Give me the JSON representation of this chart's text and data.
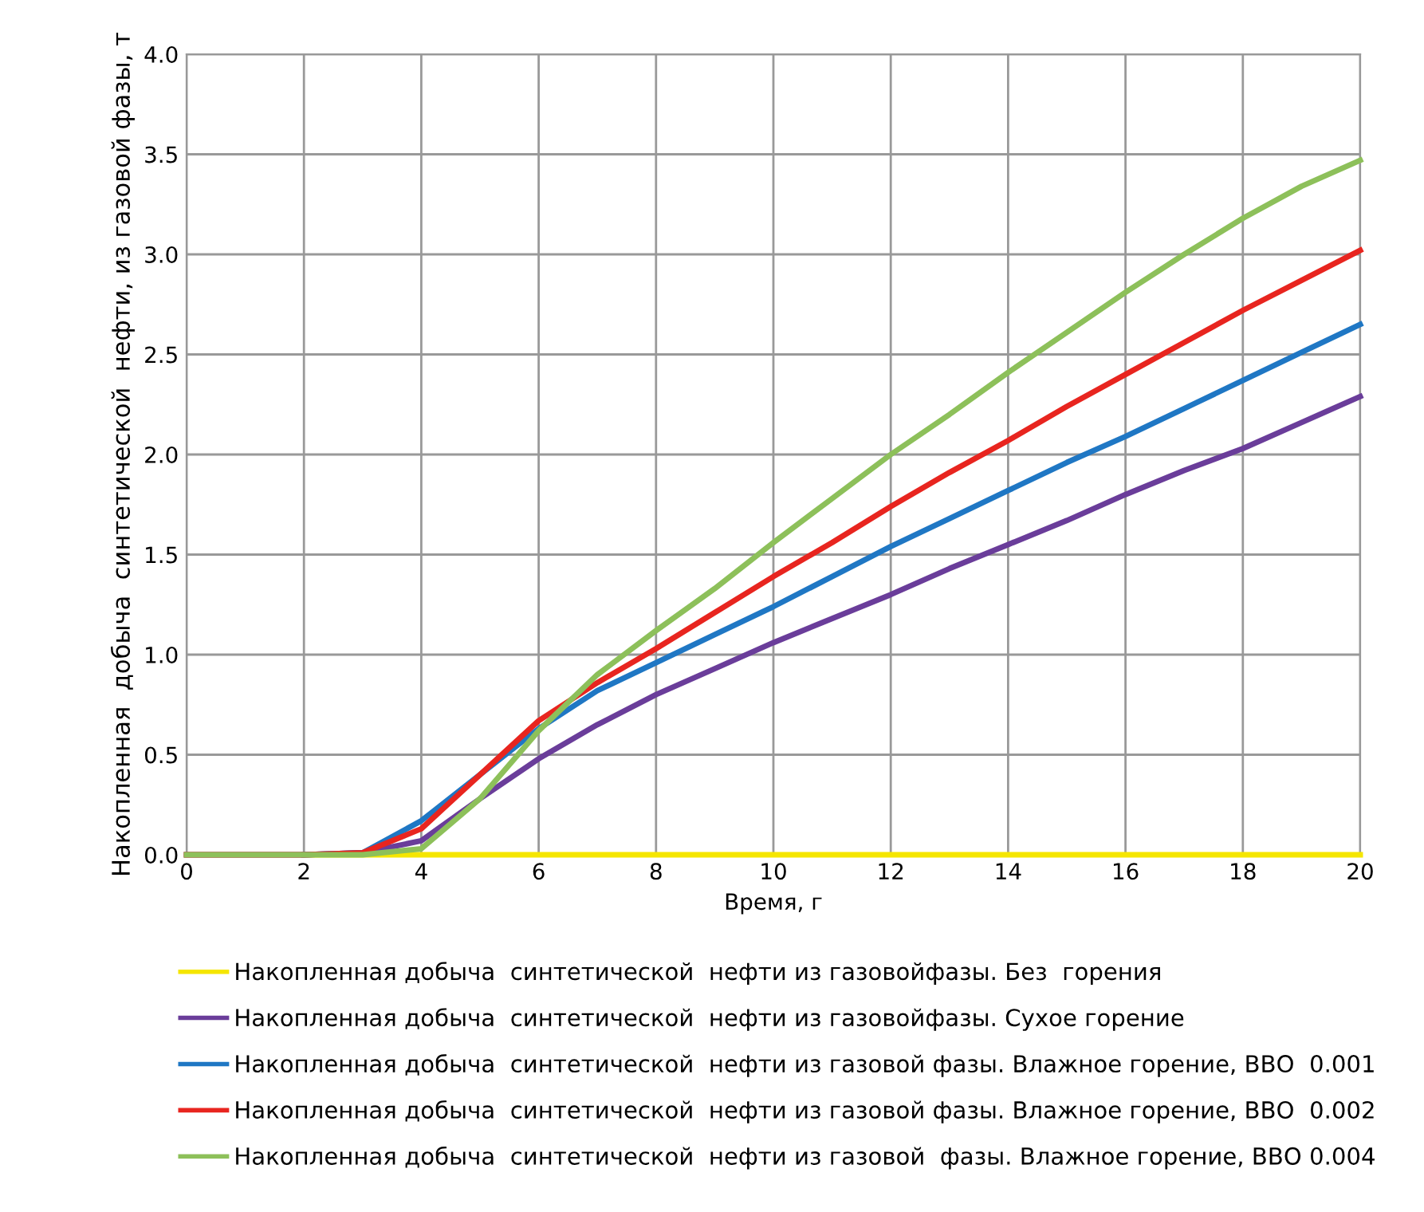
{
  "chart_data": {
    "type": "line",
    "xlabel": "Время, г",
    "ylabel": "Накопленная  добыча  синтетической  нефти, из газовой фазы, т",
    "x": [
      0,
      1,
      2,
      3,
      4,
      5,
      6,
      7,
      8,
      9,
      10,
      11,
      12,
      13,
      14,
      15,
      16,
      17,
      18,
      19,
      20
    ],
    "xlim": [
      0,
      20
    ],
    "xticks": [
      0,
      2,
      4,
      6,
      8,
      10,
      12,
      14,
      16,
      18,
      20
    ],
    "ylim": [
      0,
      4
    ],
    "yticks": [
      {
        "value": 0,
        "label": "0.0"
      },
      {
        "value": 0.5,
        "label": "0.5"
      },
      {
        "value": 1,
        "label": "1.0"
      },
      {
        "value": 1.5,
        "label": "1.5"
      },
      {
        "value": 2,
        "label": "2.0"
      },
      {
        "value": 2.5,
        "label": "2.5"
      },
      {
        "value": 3,
        "label": "3.0"
      },
      {
        "value": 3.5,
        "label": "3.5"
      },
      {
        "value": 4,
        "label": "4.0"
      }
    ],
    "grid": true,
    "legend": "bottom",
    "marker": "none",
    "line_style": "solid",
    "series": [
      {
        "name": "Накопленная добыча  синтетической  нефти из газовойфазы. Без  горения",
        "color": "#f5e600",
        "values": [
          null,
          null,
          0,
          0,
          0,
          0,
          0,
          0,
          0,
          0,
          0,
          0,
          0,
          0,
          0,
          0,
          0,
          0,
          0,
          0,
          0
        ]
      },
      {
        "name": "Накопленная добыча  синтетической  нефти из газовойфазы. Сухое горение",
        "color": "#6a3d9a",
        "values": [
          0,
          0,
          0,
          0.01,
          0.07,
          0.28,
          0.48,
          0.65,
          0.8,
          0.93,
          1.06,
          1.18,
          1.3,
          1.43,
          1.55,
          1.67,
          1.8,
          1.92,
          2.03,
          2.16,
          2.29
        ]
      },
      {
        "name": "Накопленная добыча  синтетической  нефти из газовой фазы. Влажное горение, ВВО  0.001",
        "color": "#1f77c4",
        "values": [
          null,
          null,
          0,
          0.01,
          0.17,
          0.4,
          0.63,
          0.82,
          0.96,
          1.1,
          1.24,
          1.39,
          1.54,
          1.68,
          1.82,
          1.96,
          2.09,
          2.23,
          2.37,
          2.51,
          2.65
        ]
      },
      {
        "name": "Накопленная добыча  синтетической  нефти из газовой фазы. Влажное горение, ВВО  0.002",
        "color": "#e8251f",
        "values": [
          0,
          0,
          0,
          0.01,
          0.13,
          0.4,
          0.67,
          0.86,
          1.03,
          1.21,
          1.39,
          1.56,
          1.74,
          1.91,
          2.07,
          2.24,
          2.4,
          2.56,
          2.72,
          2.87,
          3.02
        ]
      },
      {
        "name": "Накопленная добыча  синтетической  нефти из газовой  фазы. Влажное горение, ВВО 0.004",
        "color": "#8dc05a",
        "values": [
          0,
          0,
          0,
          0,
          0.03,
          0.28,
          0.62,
          0.9,
          1.12,
          1.33,
          1.56,
          1.78,
          2.0,
          2.2,
          2.41,
          2.61,
          2.81,
          3.0,
          3.18,
          3.34,
          3.47
        ]
      }
    ]
  }
}
